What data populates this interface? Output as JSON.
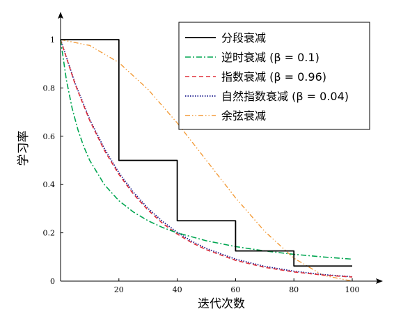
{
  "chart_data": {
    "type": "line",
    "title": "",
    "xlabel": "迭代次数",
    "ylabel": "学习率",
    "xlim": [
      0,
      100
    ],
    "ylim": [
      0,
      1
    ],
    "x_ticks": [
      20,
      40,
      60,
      80,
      100
    ],
    "x_tick_labels": [
      "20",
      "40",
      "60",
      "80",
      "100"
    ],
    "y_ticks": [
      0,
      0.2,
      0.4,
      0.6,
      0.8,
      1
    ],
    "y_tick_labels": [
      "0",
      "0.2",
      "0.4",
      "0.6",
      "0.8",
      "1"
    ],
    "grid": false,
    "legend_position": "top-right",
    "series": [
      {
        "name": "分段衰减",
        "legend_label": "分段衰减",
        "color": "#000000",
        "dash": "solid",
        "x": [
          0,
          20,
          20,
          40,
          40,
          60,
          60,
          80,
          80,
          100
        ],
        "y": [
          1,
          1,
          0.5,
          0.5,
          0.25,
          0.25,
          0.125,
          0.125,
          0.0625,
          0.0625
        ]
      },
      {
        "name": "逆时衰减",
        "legend_label": "逆时衰减 (β = 0.1)",
        "color": "#00a651",
        "dash": "dashdot",
        "x": [
          0,
          2,
          4,
          6,
          8,
          10,
          15,
          20,
          25,
          30,
          35,
          40,
          50,
          60,
          70,
          80,
          90,
          100
        ],
        "y": [
          1,
          0.833,
          0.714,
          0.625,
          0.556,
          0.5,
          0.4,
          0.333,
          0.286,
          0.25,
          0.222,
          0.2,
          0.167,
          0.143,
          0.125,
          0.111,
          0.1,
          0.091
        ]
      },
      {
        "name": "指数衰减",
        "legend_label": "指数衰减 (β = 0.96)",
        "color": "#e0303a",
        "dash": "dashed",
        "x": [
          0,
          5,
          10,
          15,
          20,
          25,
          30,
          35,
          40,
          45,
          50,
          60,
          70,
          80,
          90,
          100
        ],
        "y": [
          1,
          0.815,
          0.665,
          0.542,
          0.442,
          0.36,
          0.294,
          0.239,
          0.195,
          0.159,
          0.13,
          0.086,
          0.057,
          0.038,
          0.025,
          0.017
        ]
      },
      {
        "name": "自然指数衰减",
        "legend_label": "自然指数衰减 (β = 0.04)",
        "color": "#1a1a8c",
        "dash": "dotted",
        "x": [
          0,
          5,
          10,
          15,
          20,
          25,
          30,
          35,
          40,
          45,
          50,
          60,
          70,
          80,
          90,
          100
        ],
        "y": [
          1,
          0.819,
          0.67,
          0.549,
          0.449,
          0.368,
          0.301,
          0.247,
          0.202,
          0.165,
          0.135,
          0.091,
          0.061,
          0.041,
          0.027,
          0.018
        ]
      },
      {
        "name": "余弦衰减",
        "legend_label": "余弦衰减",
        "color": "#f39c3a",
        "dash": "dashdotdot",
        "x": [
          0,
          10,
          20,
          30,
          40,
          50,
          60,
          70,
          80,
          90,
          100
        ],
        "y": [
          1,
          0.976,
          0.905,
          0.794,
          0.655,
          0.5,
          0.345,
          0.206,
          0.095,
          0.024,
          0
        ]
      }
    ]
  }
}
